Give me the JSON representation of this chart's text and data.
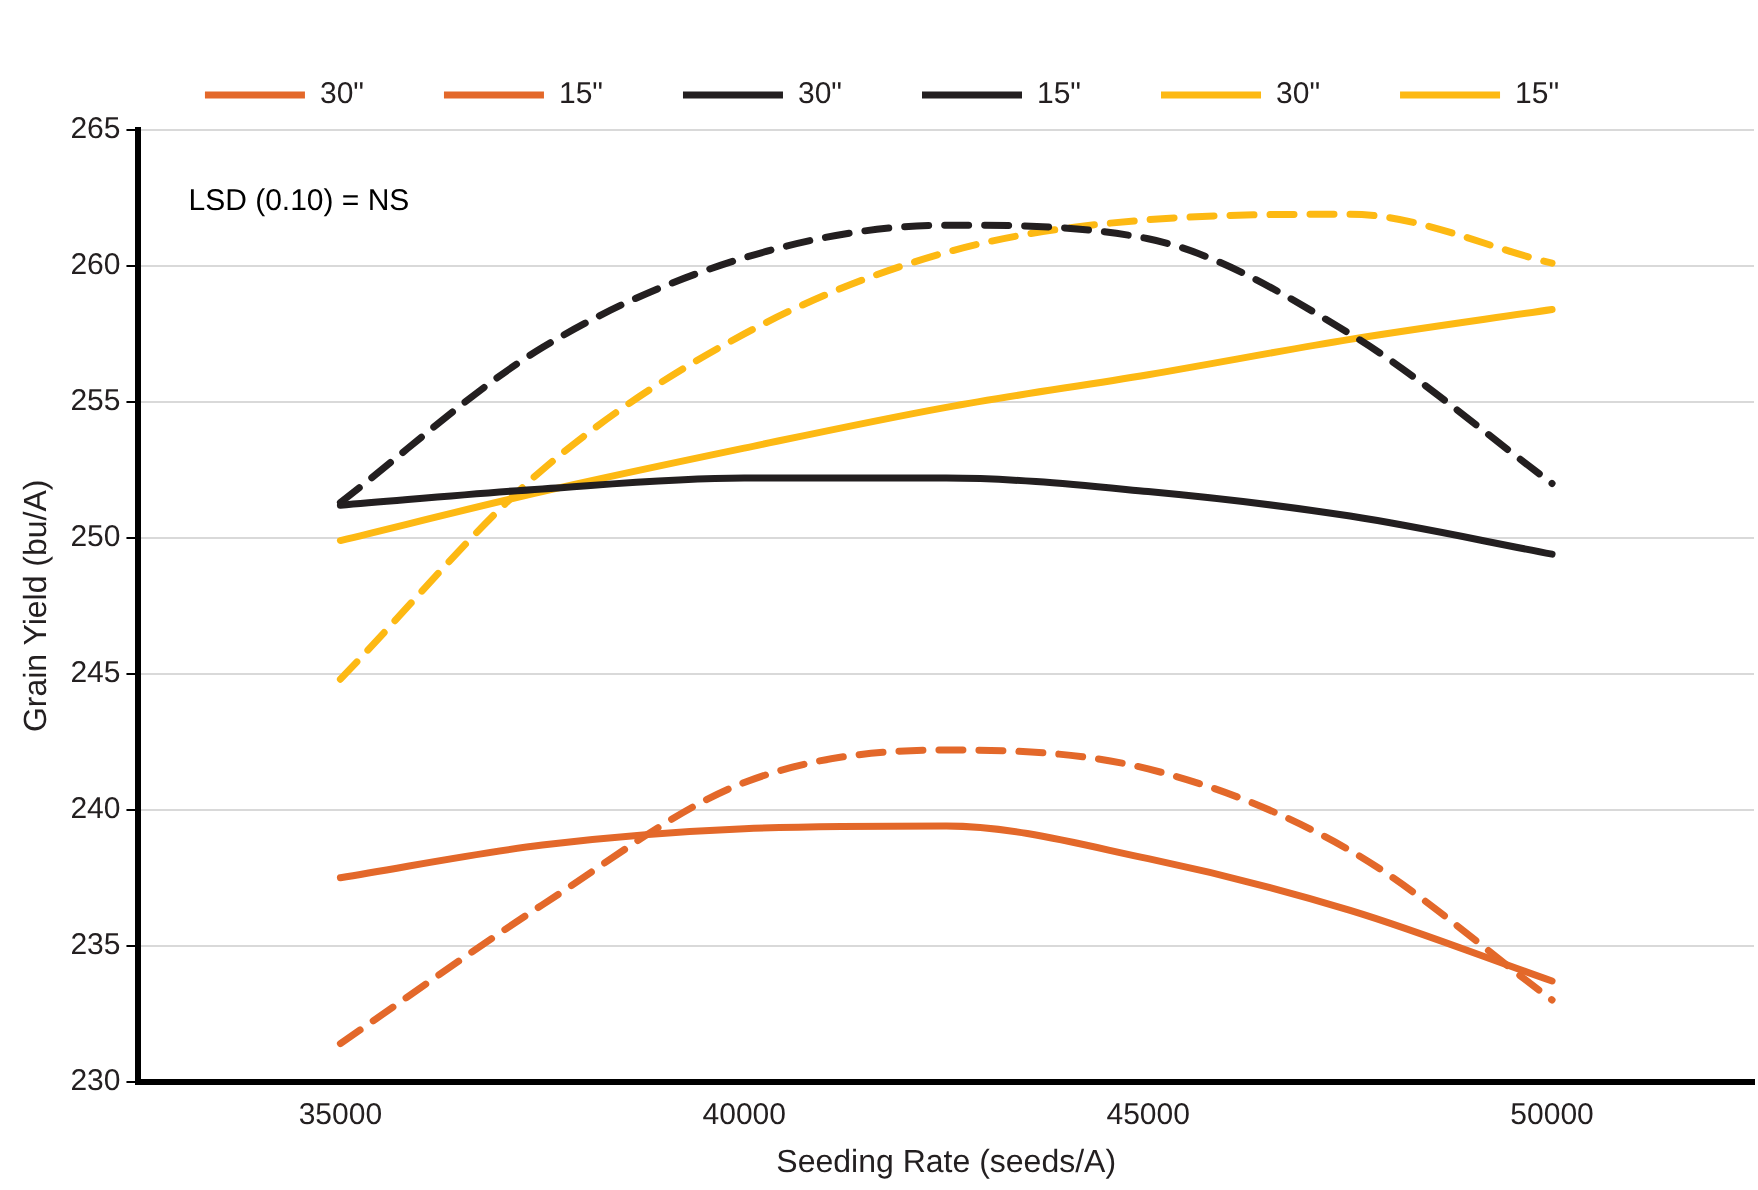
{
  "chart_data": {
    "type": "line",
    "xlabel": "Seeding Rate (seeds/A)",
    "ylabel": "Grain Yield (bu/A)",
    "x": [
      35000,
      37500,
      40000,
      42500,
      45000,
      47500,
      50000
    ],
    "xlim": [
      32500,
      52500
    ],
    "xticks": [
      35000,
      40000,
      45000,
      50000
    ],
    "ylim": [
      230,
      265
    ],
    "yticks": [
      230,
      235,
      240,
      245,
      250,
      255,
      260,
      265
    ],
    "grid": "y",
    "legend": "top",
    "marker": "none",
    "annotations": [
      "LSD (0.10) = NS"
    ],
    "series": [
      {
        "name": "30\"",
        "color": "#e3682a",
        "line_style": "solid",
        "values": [
          237.5,
          238.7,
          239.3,
          239.4,
          238.2,
          236.3,
          233.7
        ]
      },
      {
        "name": "15\"",
        "color": "#e3682a",
        "line_style": "dashed",
        "values": [
          231.4,
          236.5,
          241,
          242.2,
          241.5,
          238.5,
          233
        ]
      },
      {
        "name": "30\"",
        "color": "#231f20",
        "line_style": "solid",
        "values": [
          251.2,
          251.8,
          252.2,
          252.2,
          251.7,
          250.8,
          249.4
        ]
      },
      {
        "name": "15\"",
        "color": "#231f20",
        "line_style": "dashed",
        "values": [
          251.3,
          257,
          260.3,
          261.5,
          261,
          257.5,
          252
        ]
      },
      {
        "name": "30\"",
        "color": "#fdb913",
        "line_style": "solid",
        "values": [
          249.9,
          251.7,
          253.3,
          254.8,
          256,
          257.3,
          258.4
        ]
      },
      {
        "name": "15\"",
        "color": "#fdb913",
        "line_style": "dashed",
        "values": [
          244.8,
          252.5,
          257.5,
          260.5,
          261.7,
          261.9,
          260.1
        ]
      }
    ]
  }
}
